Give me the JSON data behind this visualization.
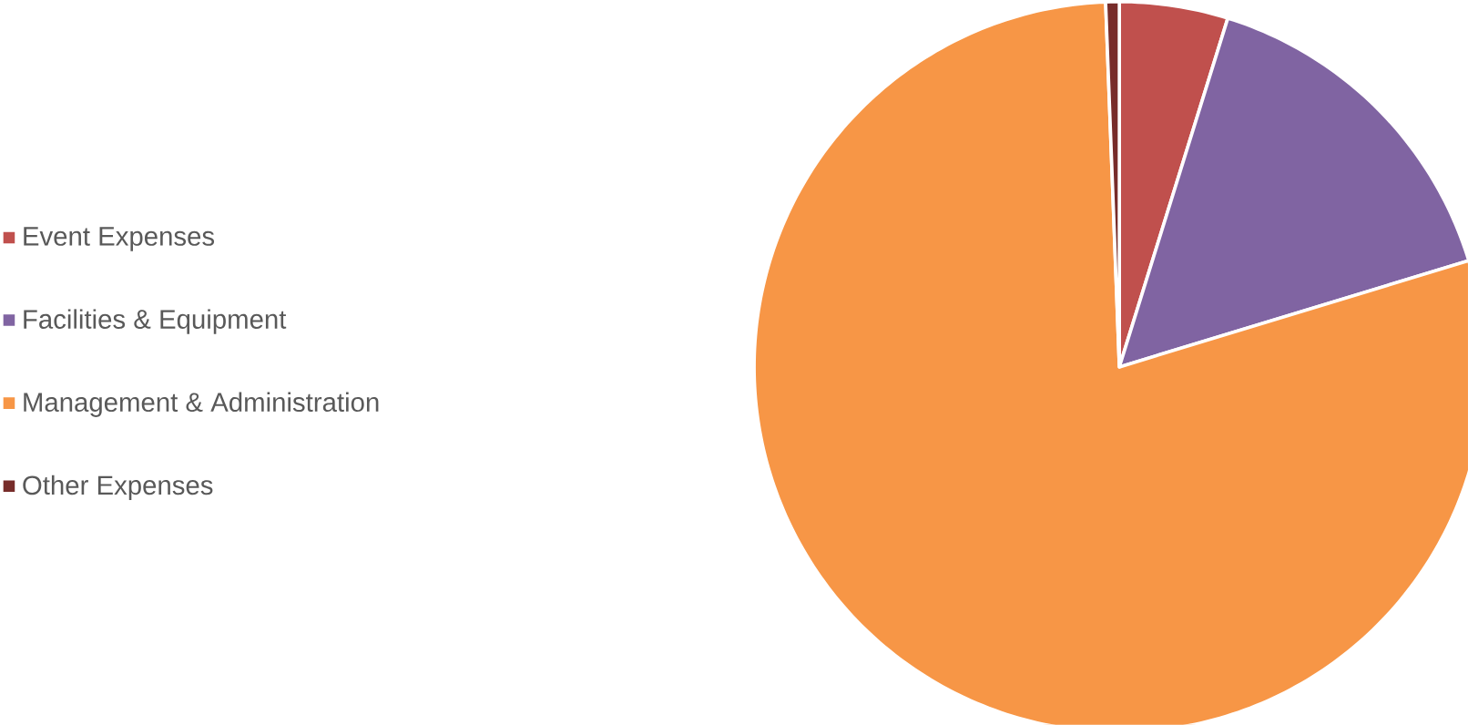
{
  "chart_data": {
    "type": "pie",
    "categories": [
      "Event Expenses",
      "Facilities & Equipment",
      "Management & Administration",
      "Other Expenses"
    ],
    "values": [
      4.8,
      15.5,
      79.1,
      0.6
    ],
    "colors": [
      "#c0504d",
      "#8064a2",
      "#f79646",
      "#772c2a"
    ],
    "legend": "left"
  }
}
